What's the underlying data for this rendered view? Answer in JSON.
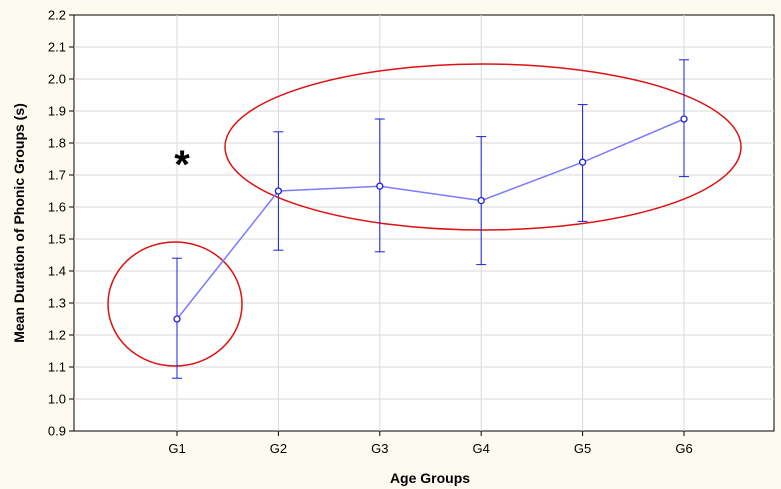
{
  "chart_data": {
    "type": "line",
    "title": "",
    "xlabel": "Age Groups",
    "ylabel": "Mean Duration of Phonic Groups (s)",
    "categories": [
      "G1",
      "G2",
      "G3",
      "G4",
      "G5",
      "G6"
    ],
    "series": [
      {
        "values": [
          1.25,
          1.65,
          1.665,
          1.62,
          1.74,
          1.875
        ],
        "error_low": [
          1.065,
          1.465,
          1.46,
          1.42,
          1.555,
          1.695
        ],
        "error_high": [
          1.44,
          1.835,
          1.875,
          1.82,
          1.92,
          2.06
        ]
      }
    ],
    "ylim": [
      0.9,
      2.2
    ],
    "yticks": [
      "0.9",
      "1.0",
      "1.1",
      "1.2",
      "1.3",
      "1.4",
      "1.5",
      "1.6",
      "1.7",
      "1.8",
      "1.9",
      "2.0",
      "2.1",
      "2.2"
    ],
    "grid": true,
    "annotations": {
      "significance_mark": "*"
    },
    "colors": {
      "series": "#1f1fdd",
      "line": "#7a7aff",
      "ellipse": "#dd1111",
      "grid": "#d8d8d8",
      "plot_background": "#ffffff"
    }
  }
}
